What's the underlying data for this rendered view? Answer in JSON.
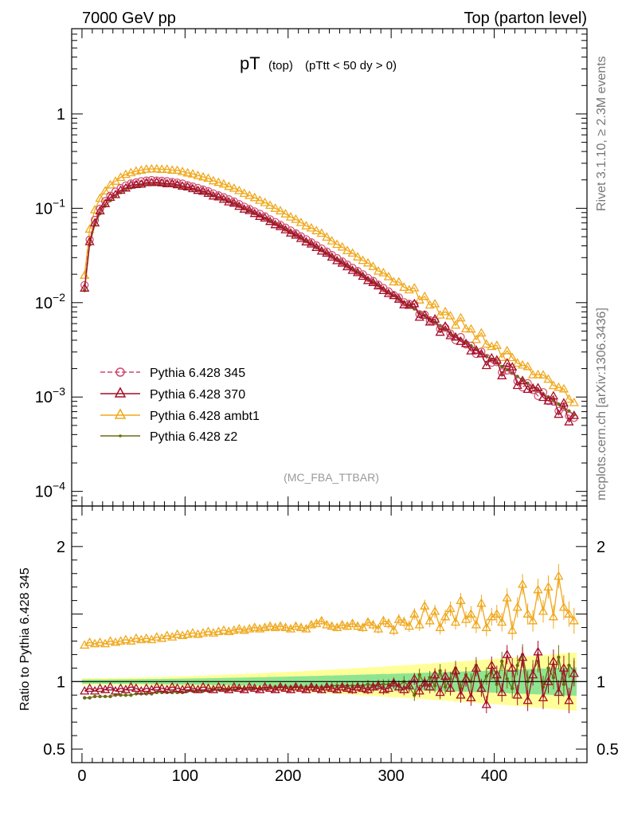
{
  "header": {
    "left": "7000 GeV pp",
    "right": "Top (parton level)"
  },
  "side_labels": {
    "upper": "Rivet 3.1.10, ≥ 2.3M events",
    "lower": "mcplots.cern.ch [arXiv:1306.3436]"
  },
  "reference_label": "(MC_FBA_TTBAR)",
  "colors": {
    "p345": "#d0476c",
    "p370": "#a50f2a",
    "ambt1": "#f0a81c",
    "z2": "#6b6b12",
    "band_yellow": "#ffff99",
    "band_green": "#8fe58f"
  },
  "chart_data": [
    {
      "type": "line",
      "title": "pT",
      "title_sub1": "(top)",
      "title_sub2": "(pTtt < 50 dy > 0)",
      "y_scale": "log",
      "xlim": [
        -10,
        490
      ],
      "ylim": [
        7e-05,
        8
      ],
      "y_ticks": [
        {
          "value": 1,
          "base": "1",
          "exp": ""
        },
        {
          "value": 0.1,
          "base": "10",
          "exp": "−1"
        },
        {
          "value": 0.01,
          "base": "10",
          "exp": "−2"
        },
        {
          "value": 0.001,
          "base": "10",
          "exp": "−3"
        },
        {
          "value": 0.0001,
          "base": "10",
          "exp": "−4"
        }
      ],
      "legend_position": "bottom-left",
      "series": [
        {
          "key": "p345",
          "name": "Pythia 6.428 345"
        },
        {
          "key": "p370",
          "name": "Pythia 6.428 370"
        },
        {
          "key": "ambt1",
          "name": "Pythia 6.428 ambt1"
        },
        {
          "key": "z2",
          "name": "Pythia 6.428 z2"
        }
      ],
      "bin_width": 5,
      "x_start": 2.5,
      "z2_shape": [
        0.0135,
        0.041,
        0.067,
        0.088,
        0.106,
        0.121,
        0.135,
        0.147,
        0.157,
        0.165,
        0.171,
        0.176,
        0.179,
        0.181,
        0.181,
        0.18,
        0.178,
        0.175,
        0.172,
        0.168,
        0.163,
        0.158,
        0.153,
        0.147,
        0.141,
        0.135,
        0.129,
        0.123,
        0.117,
        0.111,
        0.105,
        0.099,
        0.0935,
        0.088,
        0.083,
        0.078,
        0.0732,
        0.0685,
        0.064,
        0.0598,
        0.0558,
        0.052,
        0.0484,
        0.045,
        0.0418,
        0.0388,
        0.036,
        0.0334,
        0.031,
        0.0287,
        0.0265,
        0.0245,
        0.0227,
        0.021,
        0.0194,
        0.0179,
        0.0165,
        0.0152,
        0.014,
        0.0129,
        0.0119,
        0.011,
        0.0101,
        0.0093,
        0.0086,
        0.0079,
        0.0073,
        0.0067,
        0.0062,
        0.0057,
        0.0052,
        0.0048,
        0.0044,
        0.0041,
        0.0038,
        0.0035,
        0.0032,
        0.0029,
        0.0027,
        0.0025,
        0.0023,
        0.0021,
        0.00195,
        0.0018,
        0.00165,
        0.00152,
        0.0014,
        0.00128,
        0.00118,
        0.00108,
        0.001,
        0.00092,
        0.00084,
        0.00077,
        0.00071,
        0.00065
      ]
    },
    {
      "type": "line",
      "ylabel": "Ratio to Pythia 6.428 345",
      "xlim": [
        -10,
        490
      ],
      "ylim": [
        0.4,
        2.3
      ],
      "x_ticks": [
        0,
        100,
        200,
        300,
        400
      ],
      "y_ticks": [
        {
          "value": 2,
          "label": "2"
        },
        {
          "value": 1,
          "label": "1"
        },
        {
          "value": 0.5,
          "label": "0.5"
        }
      ],
      "ratio_370": [
        0.93,
        0.95,
        0.93,
        0.95,
        0.94,
        0.96,
        0.93,
        0.95,
        0.94,
        0.96,
        0.95,
        0.93,
        0.95,
        0.94,
        0.96,
        0.95,
        0.94,
        0.96,
        0.95,
        0.94,
        0.96,
        0.95,
        0.94,
        0.96,
        0.95,
        0.94,
        0.96,
        0.95,
        0.94,
        0.96,
        0.95,
        0.94,
        0.96,
        0.95,
        0.94,
        0.96,
        0.95,
        0.94,
        0.96,
        0.95,
        0.94,
        0.96,
        0.95,
        0.94,
        0.96,
        0.95,
        0.94,
        0.96,
        0.95,
        0.94,
        0.96,
        0.95,
        0.94,
        0.96,
        0.95,
        0.94,
        0.96,
        0.97,
        0.94,
        0.95,
        0.99,
        0.96,
        0.94,
        0.97,
        1.02,
        0.93,
        0.99,
        0.96,
        1.05,
        0.92,
        1.04,
        0.95,
        1.08,
        0.9,
        1.02,
        0.88,
        1.1,
        0.95,
        0.83,
        1.12,
        1.05,
        0.92,
        1.2,
        1.1,
        0.9,
        1.18,
        0.86,
        1.05,
        1.22,
        0.88,
        1.0,
        1.15,
        0.92,
        1.1,
        0.86,
        1.06
      ],
      "ratio_ambt1": [
        1.27,
        1.29,
        1.28,
        1.29,
        1.28,
        1.3,
        1.29,
        1.3,
        1.31,
        1.3,
        1.32,
        1.31,
        1.32,
        1.31,
        1.33,
        1.32,
        1.34,
        1.33,
        1.35,
        1.34,
        1.35,
        1.36,
        1.35,
        1.36,
        1.37,
        1.36,
        1.37,
        1.38,
        1.37,
        1.38,
        1.39,
        1.38,
        1.39,
        1.4,
        1.39,
        1.4,
        1.41,
        1.4,
        1.41,
        1.4,
        1.39,
        1.41,
        1.4,
        1.39,
        1.42,
        1.43,
        1.45,
        1.42,
        1.41,
        1.4,
        1.42,
        1.41,
        1.43,
        1.41,
        1.4,
        1.44,
        1.42,
        1.39,
        1.45,
        1.43,
        1.38,
        1.46,
        1.44,
        1.41,
        1.5,
        1.42,
        1.56,
        1.45,
        1.52,
        1.4,
        1.48,
        1.54,
        1.44,
        1.6,
        1.46,
        1.5,
        1.42,
        1.58,
        1.4,
        1.48,
        1.5,
        1.44,
        1.62,
        1.38,
        1.55,
        1.72,
        1.5,
        1.45,
        1.68,
        1.52,
        1.7,
        1.48,
        1.78,
        1.55,
        1.5,
        1.45
      ],
      "ratio_z2": [
        0.88,
        0.88,
        0.89,
        0.89,
        0.89,
        0.89,
        0.9,
        0.9,
        0.9,
        0.9,
        0.91,
        0.91,
        0.91,
        0.91,
        0.92,
        0.92,
        0.92,
        0.92,
        0.92,
        0.92,
        0.93,
        0.93,
        0.93,
        0.93,
        0.93,
        0.94,
        0.94,
        0.94,
        0.94,
        0.94,
        0.95,
        0.95,
        0.95,
        0.95,
        0.95,
        0.95,
        0.96,
        0.96,
        0.96,
        0.96,
        0.96,
        0.96,
        0.96,
        0.96,
        0.96,
        0.96,
        0.96,
        0.96,
        0.97,
        0.97,
        0.97,
        0.97,
        0.97,
        0.97,
        0.97,
        0.98,
        0.97,
        0.98,
        0.98,
        0.98,
        0.99,
        0.97,
        1.0,
        0.96,
        0.9,
        1.05,
        0.98,
        1.03,
        0.97,
        1.08,
        0.96,
        1.02,
        1.1,
        0.95,
        1.05,
        1.0,
        1.12,
        0.96,
        1.04,
        1.08,
        0.98,
        1.15,
        1.02,
        0.95,
        1.12,
        1.2,
        1.0,
        1.08,
        1.15,
        0.96,
        1.1,
        1.03,
        1.18,
        0.98,
        1.12,
        1.08
      ]
    }
  ]
}
